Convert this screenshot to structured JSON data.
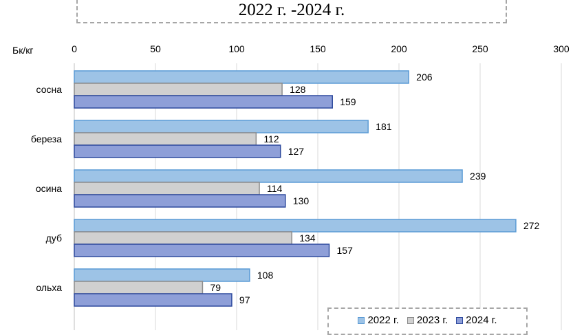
{
  "title": "2022 г. -2024 г.",
  "chart_data": {
    "type": "bar",
    "orientation": "horizontal",
    "title": "2022 г. -2024 г.",
    "unit_label": "Бк/кг",
    "categories": [
      "сосна",
      "береза",
      "осина",
      "дуб",
      "ольха"
    ],
    "series": [
      {
        "name": "2022 г.",
        "values": [
          206,
          181,
          239,
          272,
          108
        ],
        "fill": "#9dc3e6",
        "stroke": "#5b9bd5"
      },
      {
        "name": "2023 г.",
        "values": [
          128,
          112,
          114,
          134,
          79
        ],
        "fill": "#d0d0d0",
        "stroke": "#8c8c8c"
      },
      {
        "name": "2024 г.",
        "values": [
          159,
          127,
          130,
          157,
          97
        ],
        "fill": "#8e9fd8",
        "stroke": "#2e4a9e"
      }
    ],
    "xlim": [
      0,
      300
    ],
    "xticks": [
      0,
      50,
      100,
      150,
      200,
      250,
      300
    ],
    "grid": true,
    "legend_position": "bottom-right",
    "data_labels": true
  }
}
